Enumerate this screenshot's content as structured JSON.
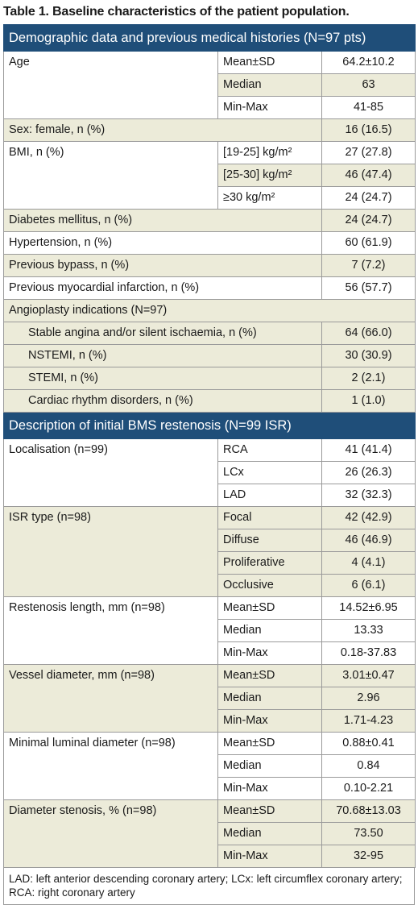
{
  "title": "Table 1. Baseline characteristics of the patient population.",
  "section1": {
    "header": "Demographic data and previous medical histories (N=97 pts)",
    "age": {
      "label": "Age",
      "rows": [
        [
          "Mean±SD",
          "64.2±10.2"
        ],
        [
          "Median",
          "63"
        ],
        [
          "Min-Max",
          "41-85"
        ]
      ]
    },
    "sex": {
      "label": "Sex: female, n (%)",
      "value": "16 (16.5)"
    },
    "bmi": {
      "label": "BMI, n (%)",
      "rows": [
        [
          "[19-25] kg/m²",
          "27 (27.8)"
        ],
        [
          "[25-30] kg/m²",
          "46 (47.4)"
        ],
        [
          "≥30 kg/m²",
          "24 (24.7)"
        ]
      ]
    },
    "diabetes": {
      "label": "Diabetes mellitus, n (%)",
      "value": "24 (24.7)"
    },
    "hypertension": {
      "label": "Hypertension, n (%)",
      "value": "60 (61.9)"
    },
    "bypass": {
      "label": "Previous bypass, n (%)",
      "value": "7 (7.2)"
    },
    "mi": {
      "label": "Previous myocardial infarction, n (%)",
      "value": "56 (57.7)"
    },
    "indications": {
      "label": "Angioplasty indications (N=97)",
      "rows": [
        [
          "Stable angina and/or silent ischaemia, n (%)",
          "64 (66.0)"
        ],
        [
          "NSTEMI, n (%)",
          "30 (30.9)"
        ],
        [
          "STEMI, n (%)",
          "2 (2.1)"
        ],
        [
          "Cardiac rhythm disorders, n (%)",
          "1 (1.0)"
        ]
      ]
    }
  },
  "section2": {
    "header": "Description of initial BMS restenosis (N=99 ISR)",
    "localisation": {
      "label": "Localisation (n=99)",
      "rows": [
        [
          "RCA",
          "41 (41.4)"
        ],
        [
          "LCx",
          "26 (26.3)"
        ],
        [
          "LAD",
          "32 (32.3)"
        ]
      ]
    },
    "isr_type": {
      "label": "ISR type (n=98)",
      "rows": [
        [
          "Focal",
          "42 (42.9)"
        ],
        [
          "Diffuse",
          "46 (46.9)"
        ],
        [
          "Proliferative",
          "4 (4.1)"
        ],
        [
          "Occlusive",
          "6 (6.1)"
        ]
      ]
    },
    "restenosis_length": {
      "label": "Restenosis length, mm (n=98)",
      "rows": [
        [
          "Mean±SD",
          "14.52±6.95"
        ],
        [
          "Median",
          "13.33"
        ],
        [
          "Min-Max",
          "0.18-37.83"
        ]
      ]
    },
    "vessel_diameter": {
      "label": "Vessel diameter, mm (n=98)",
      "rows": [
        [
          "Mean±SD",
          "3.01±0.47"
        ],
        [
          "Median",
          "2.96"
        ],
        [
          "Min-Max",
          "1.71-4.23"
        ]
      ]
    },
    "mld": {
      "label": "Minimal luminal diameter (n=98)",
      "rows": [
        [
          "Mean±SD",
          "0.88±0.41"
        ],
        [
          "Median",
          "0.84"
        ],
        [
          "Min-Max",
          "0.10-2.21"
        ]
      ]
    },
    "diameter_stenosis": {
      "label": "Diameter stenosis, % (n=98)",
      "rows": [
        [
          "Mean±SD",
          "70.68±13.03"
        ],
        [
          "Median",
          "73.50"
        ],
        [
          "Min-Max",
          "32-95"
        ]
      ]
    }
  },
  "footnote": "LAD: left anterior descending coronary artery; LCx: left circumflex coronary artery;  RCA: right coronary artery"
}
